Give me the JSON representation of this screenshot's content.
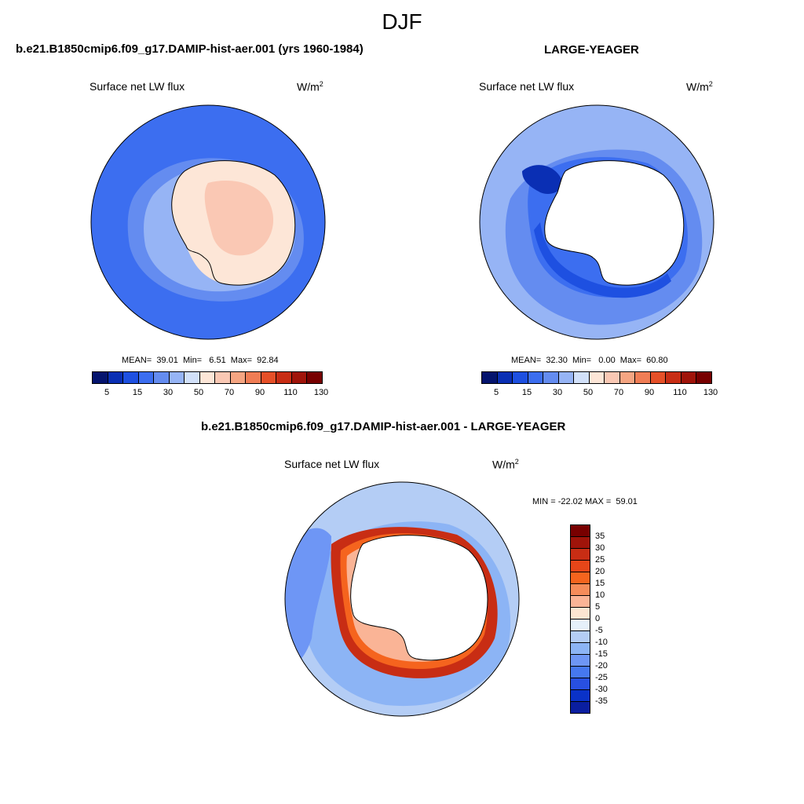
{
  "figure": {
    "season": "DJF",
    "panel1": {
      "title": "b.e21.B1850cmip6.f09_g17.DAMIP-hist-aer.001 (yrs 1960-1984)",
      "field": "Surface net LW flux",
      "units": "W/m",
      "units_exp": "2",
      "stats": "MEAN=  39.01  Min=   6.51  Max=  92.84"
    },
    "panel2": {
      "title": "LARGE-YEAGER",
      "field": "Surface net LW flux",
      "units": "W/m",
      "units_exp": "2",
      "stats": "MEAN=  32.30  Min=   0.00  Max=  60.80"
    },
    "panel3": {
      "title": "b.e21.B1850cmip6.f09_g17.DAMIP-hist-aer.001 - LARGE-YEAGER",
      "field": "Surface net LW flux",
      "units": "W/m",
      "units_exp": "2",
      "stats": "MIN = -22.02 MAX =  59.01"
    }
  },
  "chart_data": [
    {
      "type": "heatmap",
      "title": "b.e21.B1850cmip6.f09_g17.DAMIP-hist-aer.001 (yrs 1960-1984)",
      "variable": "Surface net LW flux",
      "units": "W/m2",
      "projection": "south polar stereographic",
      "mean": 39.01,
      "min": 6.51,
      "max": 92.84,
      "colorbar_ticks": [
        "5",
        "15",
        "30",
        "50",
        "70",
        "90",
        "110",
        "130"
      ],
      "colorbar_colors": [
        "#05146e",
        "#0a2fb4",
        "#1e50e1",
        "#3c6ef0",
        "#648cf0",
        "#96b4f5",
        "#d2e1fa",
        "#fde6d7",
        "#fac8b4",
        "#f5a582",
        "#f07d55",
        "#e65028",
        "#c82d14",
        "#a0140a",
        "#780000"
      ]
    },
    {
      "type": "heatmap",
      "title": "LARGE-YEAGER",
      "variable": "Surface net LW flux",
      "units": "W/m2",
      "projection": "south polar stereographic",
      "mean": 32.3,
      "min": 0.0,
      "max": 60.8,
      "colorbar_ticks": [
        "5",
        "15",
        "30",
        "50",
        "70",
        "90",
        "110",
        "130"
      ],
      "colorbar_colors": [
        "#05146e",
        "#0a2fb4",
        "#1e50e1",
        "#3c6ef0",
        "#648cf0",
        "#96b4f5",
        "#d2e1fa",
        "#fde6d7",
        "#fac8b4",
        "#f5a582",
        "#f07d55",
        "#e65028",
        "#c82d14",
        "#a0140a",
        "#780000"
      ]
    },
    {
      "type": "heatmap",
      "title": "b.e21.B1850cmip6.f09_g17.DAMIP-hist-aer.001 - LARGE-YEAGER",
      "variable": "Surface net LW flux (difference)",
      "units": "W/m2",
      "projection": "south polar stereographic",
      "min": -22.02,
      "max": 59.01,
      "colorbar_ticks": [
        "35",
        "30",
        "25",
        "20",
        "15",
        "10",
        "5",
        "0",
        "-5",
        "-10",
        "-15",
        "-20",
        "-25",
        "-30",
        "-35"
      ],
      "colorbar_colors": [
        "#780000",
        "#a0140a",
        "#c82d14",
        "#e64619",
        "#f5641e",
        "#f58c5a",
        "#fab496",
        "#fde6d2",
        "#e6f0fa",
        "#b4cdf5",
        "#8cb4f5",
        "#6e96f5",
        "#4678f0",
        "#2850e1",
        "#0a32c8",
        "#0a1ea0",
        "#000078"
      ]
    }
  ]
}
